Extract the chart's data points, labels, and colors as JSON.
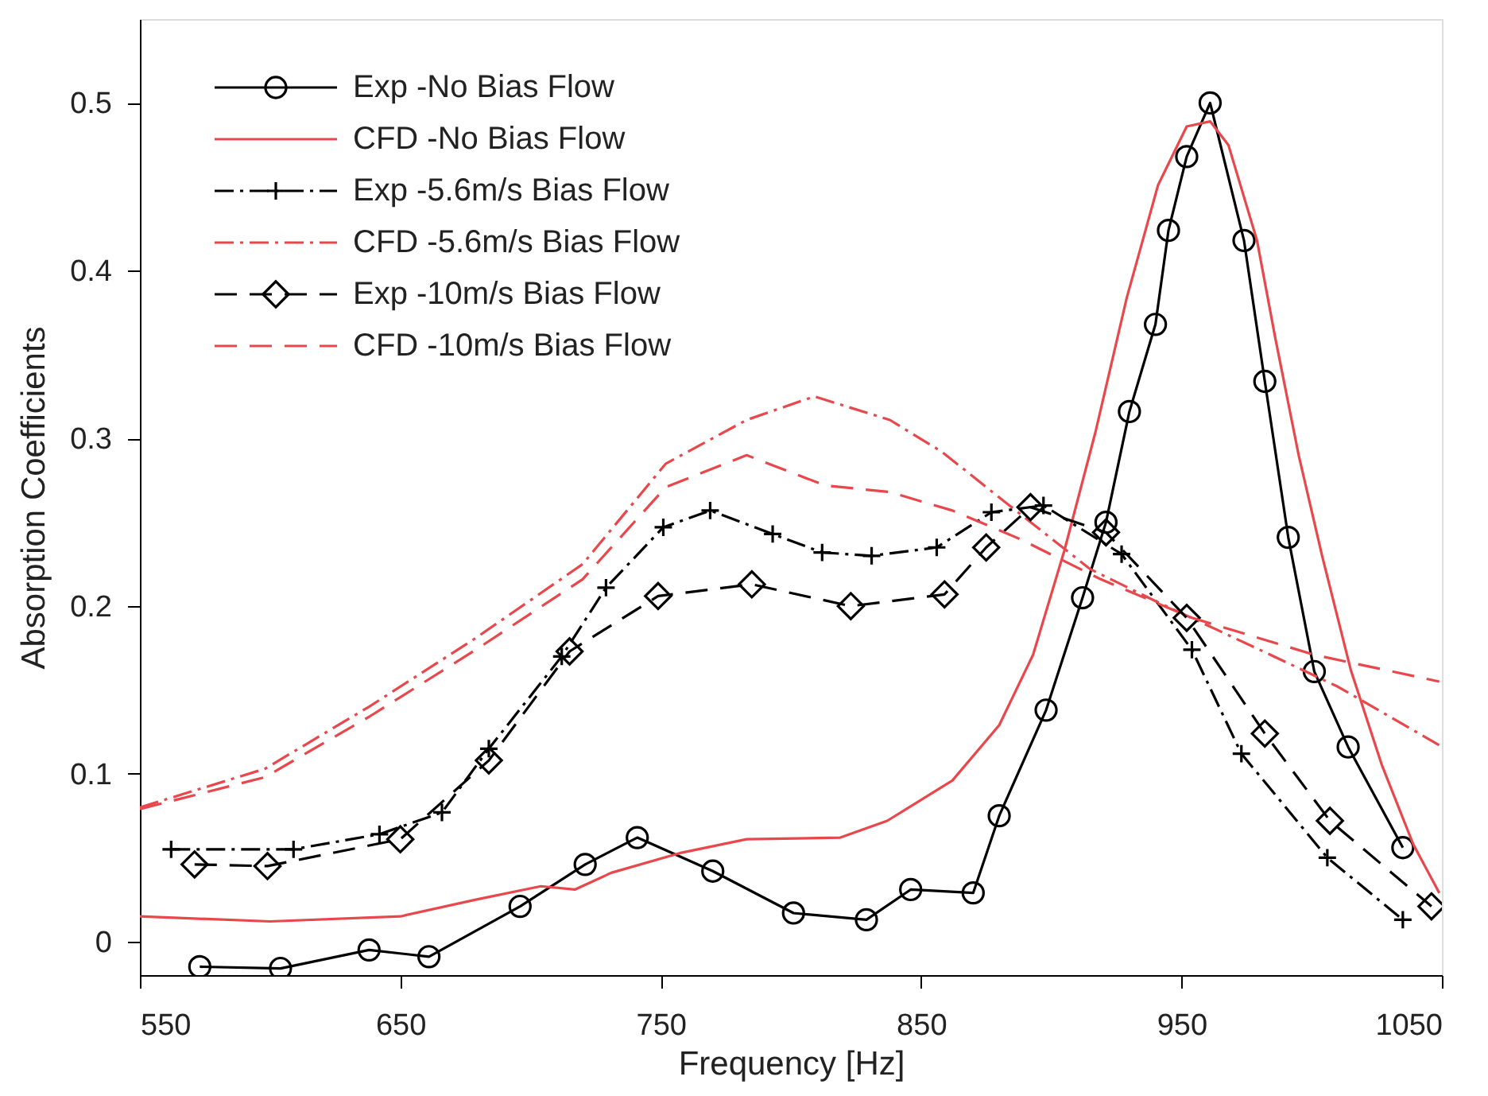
{
  "chart_data": {
    "type": "line",
    "xlabel": "Frequency [Hz]",
    "ylabel": "Absorption Coefficients",
    "xlim": [
      550,
      1050
    ],
    "xticks": [
      550,
      650,
      750,
      850,
      950,
      1050
    ],
    "ylim": [
      -0.02,
      0.55
    ],
    "yticks": [
      0,
      0.1,
      0.2,
      0.3,
      0.4,
      0.5
    ],
    "grid": false,
    "legend": "top left",
    "series": [
      {
        "name": "Exp -No Bias Flow",
        "color": "#000000",
        "marker": "circle",
        "line_style": "solid",
        "x": [
          573,
          604,
          638,
          661,
          696,
          721,
          741,
          770,
          801,
          829,
          846,
          870,
          880,
          898,
          912,
          921,
          930,
          940,
          945,
          952,
          961,
          974,
          982,
          991,
          1001,
          1014,
          1035
        ],
        "values": [
          -0.015,
          -0.016,
          -0.005,
          -0.009,
          0.021,
          0.046,
          0.062,
          0.042,
          0.017,
          0.013,
          0.031,
          0.029,
          0.075,
          0.138,
          0.205,
          0.25,
          0.316,
          0.368,
          0.424,
          0.468,
          0.5,
          0.418,
          0.334,
          0.241,
          0.161,
          0.116,
          0.056
        ]
      },
      {
        "name": "CFD -No Bias Flow",
        "color": "#e8474c",
        "marker": "none",
        "line_style": "solid",
        "x": [
          550,
          600,
          650,
          679,
          704,
          717,
          731,
          758,
          783,
          819,
          837,
          862,
          880,
          893,
          905,
          917,
          929,
          941,
          952,
          961,
          968,
          979,
          986,
          995,
          1004,
          1015,
          1027,
          1039,
          1049
        ],
        "values": [
          0.015,
          0.012,
          0.015,
          0.025,
          0.033,
          0.031,
          0.041,
          0.053,
          0.061,
          0.062,
          0.072,
          0.096,
          0.129,
          0.171,
          0.233,
          0.304,
          0.384,
          0.451,
          0.486,
          0.489,
          0.475,
          0.418,
          0.36,
          0.29,
          0.23,
          0.162,
          0.105,
          0.058,
          0.029
        ]
      },
      {
        "name": "Exp -5.6m/s Bias Flow",
        "color": "#000000",
        "marker": "cross",
        "line_style": "dashdot",
        "x": [
          562,
          609,
          642,
          666,
          684,
          712,
          729,
          751,
          769,
          793,
          812,
          831,
          856,
          877,
          897,
          927,
          954,
          973,
          1006,
          1035
        ],
        "values": [
          0.055,
          0.055,
          0.064,
          0.077,
          0.115,
          0.17,
          0.211,
          0.247,
          0.257,
          0.243,
          0.232,
          0.23,
          0.235,
          0.256,
          0.26,
          0.231,
          0.174,
          0.112,
          0.05,
          0.013
        ]
      },
      {
        "name": "CFD -5.6m/s Bias Flow",
        "color": "#e8474c",
        "marker": "none",
        "line_style": "dashdot",
        "x": [
          550,
          598,
          638,
          679,
          720,
          752,
          783,
          809,
          838,
          858,
          879,
          915,
          940,
          980,
          1010,
          1049
        ],
        "values": [
          0.08,
          0.103,
          0.14,
          0.181,
          0.225,
          0.285,
          0.311,
          0.325,
          0.311,
          0.292,
          0.266,
          0.222,
          0.203,
          0.174,
          0.152,
          0.117
        ]
      },
      {
        "name": "Exp -10m/s Bias Flow",
        "color": "#000000",
        "marker": "diamond",
        "line_style": "dashed",
        "x": [
          571,
          599,
          650,
          684,
          715,
          749,
          785,
          823,
          859,
          875,
          892,
          921,
          952,
          982,
          1007,
          1046
        ],
        "values": [
          0.046,
          0.045,
          0.061,
          0.108,
          0.173,
          0.206,
          0.213,
          0.2,
          0.207,
          0.235,
          0.259,
          0.244,
          0.193,
          0.124,
          0.072,
          0.021
        ]
      },
      {
        "name": "CFD -10m/s Bias Flow",
        "color": "#e8474c",
        "marker": "none",
        "line_style": "dashed",
        "x": [
          550,
          598,
          638,
          679,
          720,
          752,
          783,
          813,
          838,
          862,
          888,
          919,
          954,
          1001,
          1049
        ],
        "values": [
          0.079,
          0.098,
          0.134,
          0.174,
          0.216,
          0.271,
          0.29,
          0.272,
          0.268,
          0.257,
          0.24,
          0.216,
          0.193,
          0.171,
          0.155
        ]
      }
    ]
  }
}
